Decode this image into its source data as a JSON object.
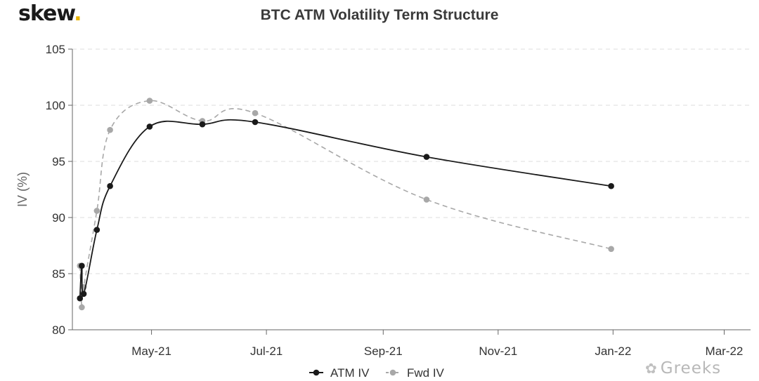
{
  "header": {
    "logo_text": "skew",
    "logo_dot": ".",
    "logo_dot_color": "#e8b300"
  },
  "watermark": {
    "icon": "wechat-icon",
    "text": "Greeks"
  },
  "chart_data": {
    "type": "line",
    "title": "BTC ATM Volatility Term Structure",
    "ylabel": "IV (%)",
    "xlabel": "",
    "ylim": [
      80,
      105
    ],
    "xlim": [
      "2021-03-20",
      "2022-03-15"
    ],
    "yticks": [
      80,
      85,
      90,
      95,
      100,
      105
    ],
    "xticks": [
      {
        "date": "2021-05-01",
        "label": "May-21"
      },
      {
        "date": "2021-07-01",
        "label": "Jul-21"
      },
      {
        "date": "2021-09-01",
        "label": "Sep-21"
      },
      {
        "date": "2021-11-01",
        "label": "Nov-21"
      },
      {
        "date": "2022-01-01",
        "label": "Jan-22"
      },
      {
        "date": "2022-03-01",
        "label": "Mar-22"
      }
    ],
    "grid": "horizontal dashed",
    "legend": "bottom-center",
    "series": [
      {
        "name": "ATM IV",
        "color": "#1a1a1a",
        "line_style": "solid",
        "points": [
          {
            "x": "2021-03-24",
            "y": 82.8
          },
          {
            "x": "2021-03-25",
            "y": 85.7
          },
          {
            "x": "2021-03-26",
            "y": 83.2
          },
          {
            "x": "2021-04-02",
            "y": 88.9
          },
          {
            "x": "2021-04-09",
            "y": 92.8
          },
          {
            "x": "2021-04-30",
            "y": 98.1
          },
          {
            "x": "2021-05-28",
            "y": 98.3
          },
          {
            "x": "2021-06-25",
            "y": 98.5
          },
          {
            "x": "2021-09-24",
            "y": 95.4
          },
          {
            "x": "2021-12-31",
            "y": 92.8
          }
        ]
      },
      {
        "name": "Fwd IV",
        "color": "#a8a8a8",
        "line_style": "dashed",
        "points": [
          {
            "x": "2021-03-24",
            "y": 85.7
          },
          {
            "x": "2021-03-25",
            "y": 82.0
          },
          {
            "x": "2021-03-26",
            "y": 83.8
          },
          {
            "x": "2021-04-02",
            "y": 90.6
          },
          {
            "x": "2021-04-09",
            "y": 97.8
          },
          {
            "x": "2021-04-30",
            "y": 100.4
          },
          {
            "x": "2021-05-28",
            "y": 98.6
          },
          {
            "x": "2021-06-25",
            "y": 99.3
          },
          {
            "x": "2021-09-24",
            "y": 91.6
          },
          {
            "x": "2021-12-31",
            "y": 87.2
          }
        ]
      }
    ]
  }
}
